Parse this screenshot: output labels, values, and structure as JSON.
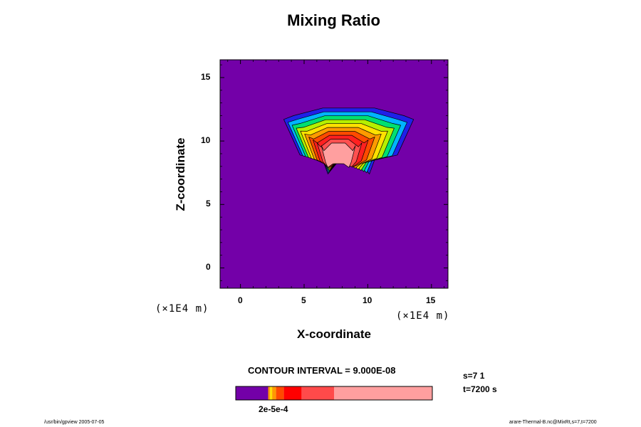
{
  "chart_data": {
    "type": "heatmap",
    "title": "Mixing Ratio",
    "xlabel": "X-coordinate",
    "ylabel": "Z-coordinate",
    "x_unit": "(×1E4 m)",
    "y_unit": "(×1E4 m)",
    "xlim": [
      -1.6,
      16.3
    ],
    "ylim": [
      -1.6,
      16.4
    ],
    "x_ticks": [
      0,
      5,
      10,
      15
    ],
    "y_ticks": [
      0,
      5,
      10,
      15
    ],
    "x_tick_labels": [
      "0",
      "5",
      "10",
      "15"
    ],
    "y_tick_labels": [
      "0",
      "5",
      "10",
      "15"
    ],
    "background_color": "#7300a8",
    "contour_levels_colors": [
      "#7300a8",
      "#2020e8",
      "#00b4ff",
      "#00e070",
      "#b4f000",
      "#ffe000",
      "#ff9a00",
      "#ff4a00",
      "#ff2020",
      "#ff5050",
      "#ff9f9f"
    ],
    "colorbar": {
      "contour_interval": "CONTOUR INTERVAL = 9.000E-08",
      "segments": [
        {
          "color": "#7300a8",
          "fraction": 0.165
        },
        {
          "color": "#ff9a00",
          "fraction": 0.01
        },
        {
          "color": "#ffe000",
          "fraction": 0.01
        },
        {
          "color": "#ff9a00",
          "fraction": 0.02
        },
        {
          "color": "#ff4a00",
          "fraction": 0.04
        },
        {
          "color": "#ff0000",
          "fraction": 0.09
        },
        {
          "color": "#ff4a4a",
          "fraction": 0.165
        },
        {
          "color": "#ff9f9f",
          "fraction": 0.5
        }
      ],
      "tick_label": "2e-5e-4"
    },
    "plume": {
      "outer": {
        "color": "#2020e8",
        "center_x": 8.5,
        "center_z": 11.5,
        "half_width": 5.1,
        "top": 12.6,
        "bottom": 8.5
      },
      "stem_bottom": 7.4,
      "core": {
        "color": "#ff9f9f",
        "center_x": 7.6,
        "center_z": 9.2
      }
    }
  },
  "annotations": {
    "s_label": "s=7 1",
    "t_label": "t=7200 s"
  },
  "footer": {
    "left": "/usr/bin/gpview 2005-07-05",
    "right": "arare-Thermal-B.nc@MixRt,s=7,t=7200"
  }
}
